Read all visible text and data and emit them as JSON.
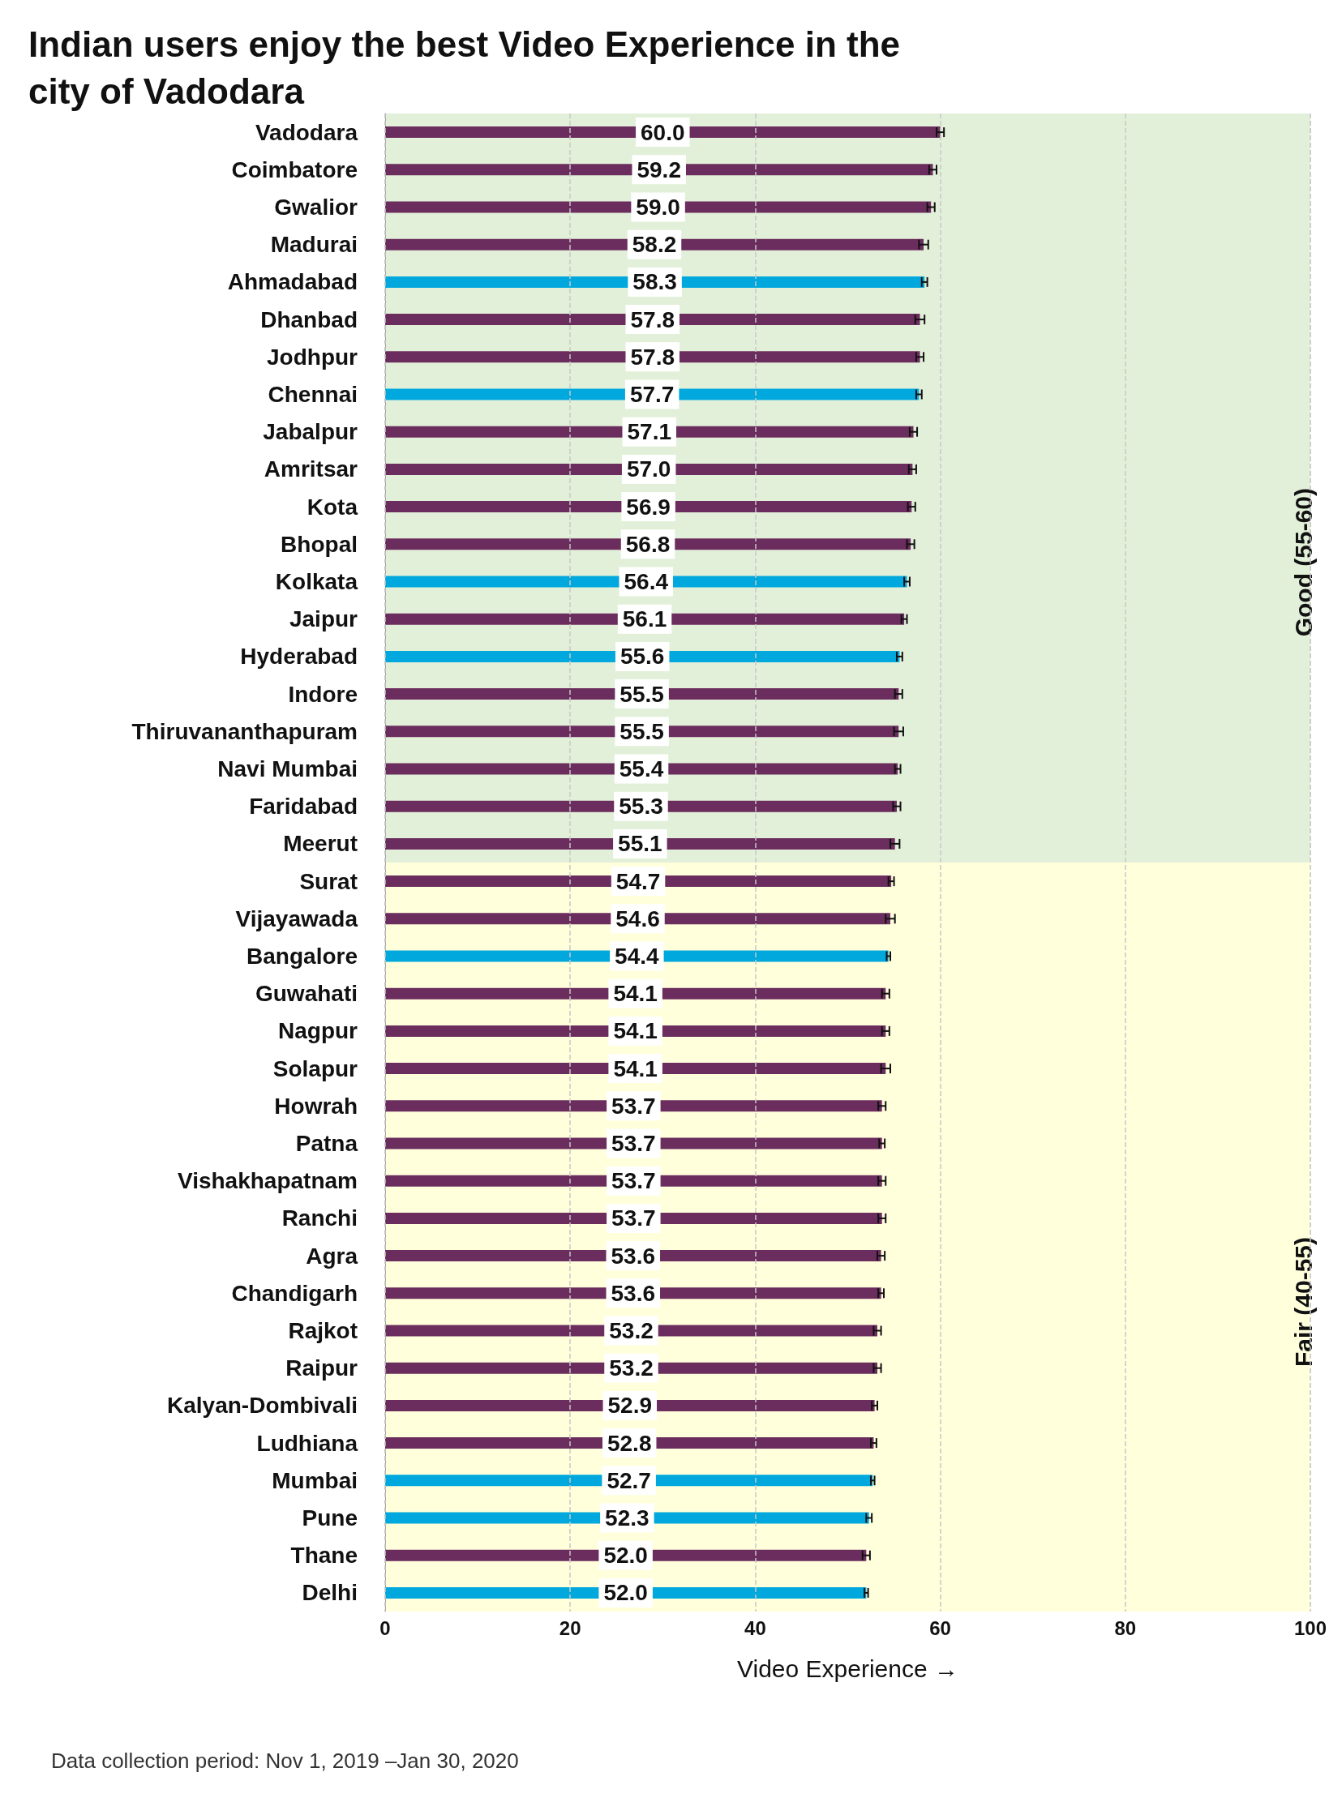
{
  "chart_data": {
    "type": "bar",
    "orientation": "horizontal",
    "title": "Indian users enjoy the best Video Experience in the city of Vadodara",
    "xlabel": "Video Experience →",
    "categories": [
      "Vadodara",
      "Coimbatore",
      "Gwalior",
      "Madurai",
      "Ahmadabad",
      "Dhanbad",
      "Jodhpur",
      "Chennai",
      "Jabalpur",
      "Amritsar",
      "Kota",
      "Bhopal",
      "Kolkata",
      "Jaipur",
      "Hyderabad",
      "Indore",
      "Thiruvananthapuram",
      "Navi Mumbai",
      "Faridabad",
      "Meerut",
      "Surat",
      "Vijayawada",
      "Bangalore",
      "Guwahati",
      "Nagpur",
      "Solapur",
      "Howrah",
      "Patna",
      "Vishakhapatnam",
      "Ranchi",
      "Agra",
      "Chandigarh",
      "Rajkot",
      "Raipur",
      "Kalyan-Dombivali",
      "Ludhiana",
      "Mumbai",
      "Pune",
      "Thane",
      "Delhi"
    ],
    "values": [
      60.0,
      59.2,
      59.0,
      58.2,
      58.3,
      57.8,
      57.8,
      57.7,
      57.1,
      57.0,
      56.9,
      56.8,
      56.4,
      56.1,
      55.6,
      55.5,
      55.5,
      55.4,
      55.3,
      55.1,
      54.7,
      54.6,
      54.4,
      54.1,
      54.1,
      54.1,
      53.7,
      53.7,
      53.7,
      53.7,
      53.6,
      53.6,
      53.2,
      53.2,
      52.9,
      52.8,
      52.7,
      52.3,
      52.0,
      52.0
    ],
    "errors": [
      0.4,
      0.4,
      0.4,
      0.5,
      0.3,
      0.5,
      0.4,
      0.3,
      0.4,
      0.4,
      0.4,
      0.4,
      0.3,
      0.3,
      0.3,
      0.4,
      0.5,
      0.3,
      0.4,
      0.5,
      0.3,
      0.5,
      0.2,
      0.4,
      0.4,
      0.5,
      0.4,
      0.3,
      0.4,
      0.4,
      0.4,
      0.3,
      0.4,
      0.4,
      0.3,
      0.3,
      0.2,
      0.3,
      0.4,
      0.2
    ],
    "colors": [
      "#6b2c5e",
      "#6b2c5e",
      "#6b2c5e",
      "#6b2c5e",
      "#00a8de",
      "#6b2c5e",
      "#6b2c5e",
      "#00a8de",
      "#6b2c5e",
      "#6b2c5e",
      "#6b2c5e",
      "#6b2c5e",
      "#00a8de",
      "#6b2c5e",
      "#00a8de",
      "#6b2c5e",
      "#6b2c5e",
      "#6b2c5e",
      "#6b2c5e",
      "#6b2c5e",
      "#6b2c5e",
      "#6b2c5e",
      "#00a8de",
      "#6b2c5e",
      "#6b2c5e",
      "#6b2c5e",
      "#6b2c5e",
      "#6b2c5e",
      "#6b2c5e",
      "#6b2c5e",
      "#6b2c5e",
      "#6b2c5e",
      "#6b2c5e",
      "#6b2c5e",
      "#6b2c5e",
      "#6b2c5e",
      "#00a8de",
      "#00a8de",
      "#6b2c5e",
      "#00a8de"
    ],
    "value_labels": [
      "60.0",
      "59.2",
      "59.0",
      "58.2",
      "58.3",
      "57.8",
      "57.8",
      "57.7",
      "57.1",
      "57.0",
      "56.9",
      "56.8",
      "56.4",
      "56.1",
      "55.6",
      "55.5",
      "55.5",
      "55.4",
      "55.3",
      "55.1",
      "54.7",
      "54.6",
      "54.4",
      "54.1",
      "54.1",
      "54.1",
      "53.7",
      "53.7",
      "53.7",
      "53.7",
      "53.6",
      "53.6",
      "53.2",
      "53.2",
      "52.9",
      "52.8",
      "52.7",
      "52.3",
      "52.0",
      "52.0"
    ],
    "xlim": [
      0,
      100
    ],
    "xticks": [
      0,
      20,
      40,
      60,
      80,
      100
    ],
    "grid": "x",
    "bands": [
      {
        "axis": "y",
        "from": "Vadodara",
        "to": "Meerut",
        "label": "Good (55-60)",
        "color": "#e2f0d9"
      },
      {
        "axis": "y",
        "from": "Surat",
        "to": "Delhi",
        "label": "Fair (40-55)",
        "color": "#ffffdc"
      }
    ],
    "annotations": [
      "Data collection period: Nov 1, 2019 –Jan 30, 2020"
    ]
  }
}
